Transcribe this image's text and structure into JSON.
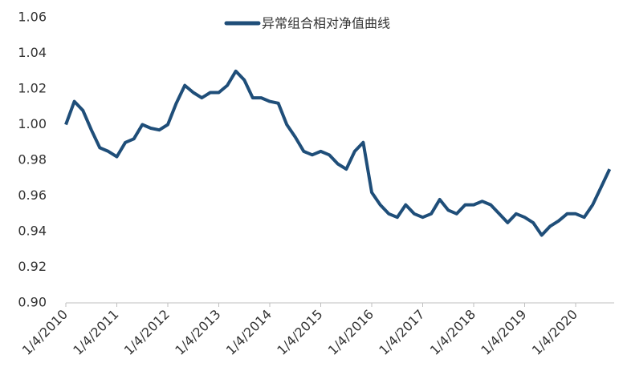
{
  "chart_data": {
    "type": "line",
    "categories": [
      "1/4/2010",
      null,
      null,
      null,
      null,
      null,
      "1/4/2011",
      null,
      null,
      null,
      null,
      null,
      "1/4/2012",
      null,
      null,
      null,
      null,
      null,
      "1/4/2013",
      null,
      null,
      null,
      null,
      null,
      "1/4/2014",
      null,
      null,
      null,
      null,
      null,
      "1/4/2015",
      null,
      null,
      null,
      null,
      null,
      "1/4/2016",
      null,
      null,
      null,
      null,
      null,
      "1/4/2017",
      null,
      null,
      null,
      null,
      null,
      "1/4/2018",
      null,
      null,
      null,
      null,
      null,
      "1/4/2019",
      null,
      null,
      null,
      null,
      null,
      "1/4/2020",
      null,
      null,
      null,
      null
    ],
    "series": [
      {
        "name": "异常组合相对净值曲线",
        "color": "#1f4e79",
        "values": [
          1.0,
          1.013,
          1.008,
          0.997,
          0.987,
          0.985,
          0.982,
          0.99,
          0.992,
          1.0,
          0.998,
          0.997,
          1.0,
          1.012,
          1.022,
          1.018,
          1.015,
          1.018,
          1.018,
          1.022,
          1.03,
          1.025,
          1.015,
          1.015,
          1.013,
          1.012,
          1.0,
          0.993,
          0.985,
          0.983,
          0.985,
          0.983,
          0.978,
          0.975,
          0.985,
          0.99,
          0.962,
          0.955,
          0.95,
          0.948,
          0.955,
          0.95,
          0.948,
          0.95,
          0.958,
          0.952,
          0.95,
          0.955,
          0.955,
          0.957,
          0.955,
          0.95,
          0.945,
          0.95,
          0.948,
          0.945,
          0.938,
          0.943,
          0.946,
          0.95,
          0.95,
          0.948,
          0.955,
          0.965,
          0.975
        ]
      }
    ],
    "ylim": [
      0.9,
      1.06
    ],
    "yticks": [
      {
        "value": 0.9,
        "label": "0.90"
      },
      0.92,
      0.94,
      0.96,
      0.98,
      {
        "value": 1.0,
        "label": "1.00"
      },
      1.02,
      1.04,
      1.06
    ],
    "legend": "top"
  }
}
